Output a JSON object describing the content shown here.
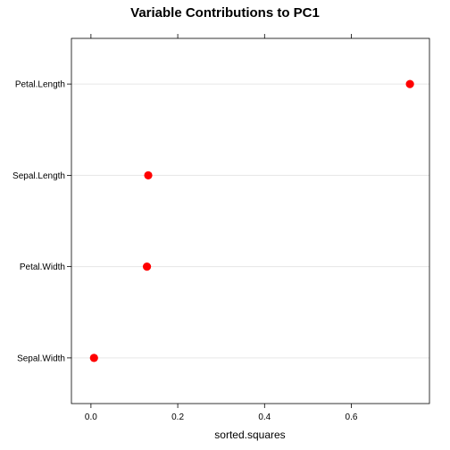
{
  "chart_data": {
    "type": "dotplot",
    "title": "Variable Contributions to PC1",
    "xlabel": "sorted.squares",
    "ylabel": "",
    "xlim": [
      -0.045,
      0.78
    ],
    "x_ticks": [
      0.0,
      0.2,
      0.4,
      0.6
    ],
    "x_tick_labels": [
      "0.0",
      "0.2",
      "0.4",
      "0.6"
    ],
    "categories": [
      "Petal.Length",
      "Sepal.Length",
      "Petal.Width",
      "Sepal.Width"
    ],
    "values": [
      0.735,
      0.132,
      0.129,
      0.007
    ],
    "grid": "horizontal",
    "legend": "none",
    "point_color": "#ff0000",
    "grid_color": "#e6e6e6"
  }
}
